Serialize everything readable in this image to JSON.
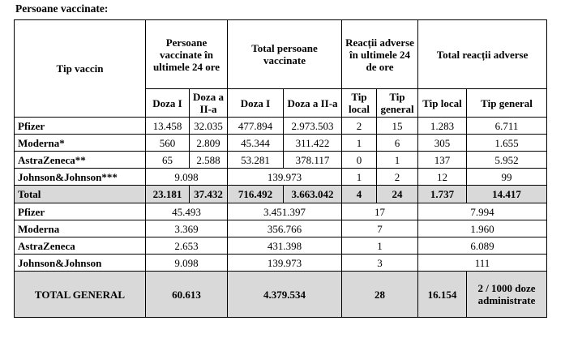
{
  "caption": "Persoane vaccinate:",
  "header": {
    "tip_vaccin": "Tip vaccin",
    "persoane_ultimele": "Persoane vaccinate în ultimele 24 ore",
    "total_persoane": "Total persoane vaccinate",
    "reactii_ultimele": "Reacții adverse în ultimele 24 de ore",
    "total_reactii": "Total reacții adverse",
    "doza_1": "Doza I",
    "doza_2": "Doza a II-a",
    "tip_local": "Tip local",
    "tip_general": "Tip general"
  },
  "rows": [
    {
      "name": "Pfizer",
      "d1_24": "13.458",
      "d2_24": "32.035",
      "d1_tot": "477.894",
      "d2_tot": "2.973.503",
      "loc_24": "2",
      "gen_24": "15",
      "loc_tot": "1.283",
      "gen_tot": "6.711"
    },
    {
      "name": "Moderna*",
      "d1_24": "560",
      "d2_24": "2.809",
      "d1_tot": "45.344",
      "d2_tot": "311.422",
      "loc_24": "1",
      "gen_24": "6",
      "loc_tot": "305",
      "gen_tot": "1.655"
    },
    {
      "name": "AstraZeneca**",
      "d1_24": "65",
      "d2_24": "2.588",
      "d1_tot": "53.281",
      "d2_tot": "378.117",
      "loc_24": "0",
      "gen_24": "1",
      "loc_tot": "137",
      "gen_tot": "5.952"
    }
  ],
  "jj": {
    "name": "Johnson&Johnson***",
    "pers_24": "9.098",
    "pers_tot": "139.973",
    "loc_24": "1",
    "gen_24": "2",
    "loc_tot": "12",
    "gen_tot": "99"
  },
  "total": {
    "name": "Total",
    "d1_24": "23.181",
    "d2_24": "37.432",
    "d1_tot": "716.492",
    "d2_tot": "3.663.042",
    "loc_24": "4",
    "gen_24": "24",
    "loc_tot": "1.737",
    "gen_tot": "14.417"
  },
  "summary": [
    {
      "name": "Pfizer",
      "pers_24": "45.493",
      "pers_tot": "3.451.397",
      "reac_24": "17",
      "reac_tot": "7.994"
    },
    {
      "name": "Moderna",
      "pers_24": "3.369",
      "pers_tot": "356.766",
      "reac_24": "7",
      "reac_tot": "1.960"
    },
    {
      "name": "AstraZeneca",
      "pers_24": "2.653",
      "pers_tot": "431.398",
      "reac_24": "1",
      "reac_tot": "6.089"
    },
    {
      "name": "Johnson&Johnson",
      "pers_24": "9.098",
      "pers_tot": "139.973",
      "reac_24": "3",
      "reac_tot": "111"
    }
  ],
  "general": {
    "name": "TOTAL GENERAL",
    "pers_24": "60.613",
    "pers_tot": "4.379.534",
    "reac_24": "28",
    "loc_tot": "16.154",
    "rate": "2 / 1000 doze administrate"
  }
}
